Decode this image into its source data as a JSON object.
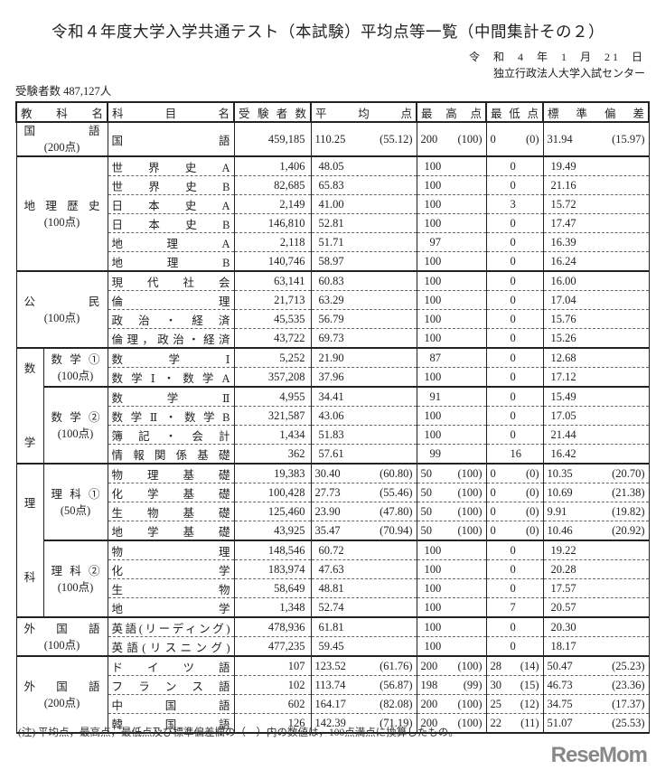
{
  "title": "令和４年度大学入学共通テスト（本試験）平均点等一覧（中間集計その２）",
  "date": "令 和 4 年 1 月 21 日",
  "organization": "独立行政法人大学入試センター",
  "total_examinees": "受験者数 487,127人",
  "headers": [
    "教　科　名",
    "科　　目　　名",
    "受 験 者 数",
    "平　均　点",
    "最 高 点",
    "最 低 点",
    "標 準 偏 差"
  ],
  "groups": [
    {
      "label": "国　　語",
      "points": "(200点)",
      "rows": [
        {
          "subject": "国　　　　　語",
          "examinees": "459,185",
          "avg": "110.25",
          "avg100": "(55.12)",
          "max": "200",
          "max100": "(100)",
          "min": "0",
          "min100": "(0)",
          "sd": "31.94",
          "sd100": "(15.97)"
        }
      ]
    },
    {
      "label": "地理歴史",
      "points": "(100点)",
      "rows": [
        {
          "subject": "世界史A",
          "examinees": "1,406",
          "avg": "48.05",
          "max": "100",
          "min": "0",
          "sd": "19.49"
        },
        {
          "subject": "世界史B",
          "examinees": "82,685",
          "avg": "65.83",
          "max": "100",
          "min": "0",
          "sd": "21.16"
        },
        {
          "subject": "日本史A",
          "examinees": "2,149",
          "avg": "41.00",
          "max": "100",
          "min": "3",
          "sd": "15.72"
        },
        {
          "subject": "日本史B",
          "examinees": "146,810",
          "avg": "52.81",
          "max": "100",
          "min": "0",
          "sd": "17.47"
        },
        {
          "subject": "地理A",
          "examinees": "2,118",
          "avg": "51.71",
          "max": "97",
          "min": "0",
          "sd": "16.39"
        },
        {
          "subject": "地理B",
          "examinees": "140,746",
          "avg": "58.97",
          "max": "100",
          "min": "0",
          "sd": "16.24"
        }
      ]
    },
    {
      "label": "公　　民",
      "points": "(100点)",
      "rows": [
        {
          "subject": "現代社会",
          "examinees": "63,141",
          "avg": "60.83",
          "max": "100",
          "min": "0",
          "sd": "16.00"
        },
        {
          "subject": "倫　　理",
          "examinees": "21,713",
          "avg": "63.29",
          "max": "100",
          "min": "0",
          "sd": "17.04"
        },
        {
          "subject": "政治・経済",
          "examinees": "45,535",
          "avg": "56.79",
          "max": "100",
          "min": "0",
          "sd": "15.76"
        },
        {
          "subject": "倫理，政治・経済",
          "examinees": "43,722",
          "avg": "69.73",
          "max": "100",
          "min": "0",
          "sd": "15.26"
        }
      ]
    },
    {
      "outer": [
        "数",
        "学"
      ],
      "subs": [
        {
          "label": "数学①",
          "points": "(100点)",
          "rows": [
            {
              "subject": "数　学　Ⅰ",
              "examinees": "5,252",
              "avg": "21.90",
              "max": "87",
              "min": "0",
              "sd": "12.68"
            },
            {
              "subject": "数学Ⅰ・数学A",
              "examinees": "357,208",
              "avg": "37.96",
              "max": "100",
              "min": "0",
              "sd": "17.12"
            }
          ]
        },
        {
          "label": "数学②",
          "points": "(100点)",
          "rows": [
            {
              "subject": "数　学　Ⅱ",
              "examinees": "4,955",
              "avg": "34.41",
              "max": "91",
              "min": "0",
              "sd": "15.49"
            },
            {
              "subject": "数学Ⅱ・数学B",
              "examinees": "321,587",
              "avg": "43.06",
              "max": "100",
              "min": "0",
              "sd": "17.05"
            },
            {
              "subject": "簿記・会計",
              "examinees": "1,434",
              "avg": "51.83",
              "max": "100",
              "min": "0",
              "sd": "21.44"
            },
            {
              "subject": "情報関係基礎",
              "examinees": "362",
              "avg": "57.61",
              "max": "99",
              "min": "16",
              "sd": "16.42"
            }
          ]
        }
      ]
    },
    {
      "outer": [
        "理",
        "科"
      ],
      "subs": [
        {
          "label": "理科①",
          "points": "(50点)",
          "rows": [
            {
              "subject": "物理基礎",
              "examinees": "19,383",
              "avg": "30.40",
              "avg100": "(60.80)",
              "max": "50",
              "max100": "(100)",
              "min": "0",
              "min100": "(0)",
              "sd": "10.35",
              "sd100": "(20.70)"
            },
            {
              "subject": "化学基礎",
              "examinees": "100,428",
              "avg": "27.73",
              "avg100": "(55.46)",
              "max": "50",
              "max100": "(100)",
              "min": "0",
              "min100": "(0)",
              "sd": "10.69",
              "sd100": "(21.38)"
            },
            {
              "subject": "生物基礎",
              "examinees": "125,460",
              "avg": "23.90",
              "avg100": "(47.80)",
              "max": "50",
              "max100": "(100)",
              "min": "0",
              "min100": "(0)",
              "sd": "9.91",
              "sd100": "(19.82)"
            },
            {
              "subject": "地学基礎",
              "examinees": "43,925",
              "avg": "35.47",
              "avg100": "(70.94)",
              "max": "50",
              "max100": "(100)",
              "min": "0",
              "min100": "(0)",
              "sd": "10.46",
              "sd100": "(20.92)"
            }
          ]
        },
        {
          "label": "理科②",
          "points": "(100点)",
          "rows": [
            {
              "subject": "物　　理",
              "examinees": "148,546",
              "avg": "60.72",
              "max": "100",
              "min": "0",
              "sd": "19.22"
            },
            {
              "subject": "化　　学",
              "examinees": "183,974",
              "avg": "47.63",
              "max": "100",
              "min": "0",
              "sd": "20.28"
            },
            {
              "subject": "生　　物",
              "examinees": "58,649",
              "avg": "48.81",
              "max": "100",
              "min": "0",
              "sd": "17.57"
            },
            {
              "subject": "地　　学",
              "examinees": "1,348",
              "avg": "52.74",
              "max": "100",
              "min": "7",
              "sd": "20.57"
            }
          ]
        }
      ]
    },
    {
      "label": "外国語",
      "points": "(100点)",
      "rows": [
        {
          "subject": "英語(リーディング)",
          "examinees": "478,936",
          "avg": "61.81",
          "max": "100",
          "min": "0",
          "sd": "20.30"
        },
        {
          "subject": "英語(リスニング)",
          "examinees": "477,235",
          "avg": "59.45",
          "max": "100",
          "min": "0",
          "sd": "18.17"
        }
      ]
    },
    {
      "label": "外国語",
      "points": "(200点)",
      "rows": [
        {
          "subject": "ドイツ語",
          "examinees": "107",
          "avg": "123.52",
          "avg100": "(61.76)",
          "max": "200",
          "max100": "(100)",
          "min": "28",
          "min100": "(14)",
          "sd": "50.47",
          "sd100": "(25.23)"
        },
        {
          "subject": "フランス語",
          "examinees": "102",
          "avg": "113.74",
          "avg100": "(56.87)",
          "max": "198",
          "max100": "(99)",
          "min": "30",
          "min100": "(15)",
          "sd": "46.73",
          "sd100": "(23.36)"
        },
        {
          "subject": "中　国　語",
          "examinees": "602",
          "avg": "164.17",
          "avg100": "(82.08)",
          "max": "200",
          "max100": "(100)",
          "min": "25",
          "min100": "(12)",
          "sd": "34.75",
          "sd100": "(17.37)"
        },
        {
          "subject": "韓　国　語",
          "examinees": "126",
          "avg": "142.39",
          "avg100": "(71.19)",
          "max": "200",
          "max100": "(100)",
          "min": "22",
          "min100": "(11)",
          "sd": "51.07",
          "sd100": "(25.53)"
        }
      ]
    }
  ],
  "note": "(注) 平均点，最高点，最低点及び標準偏差欄の（　）内の数値は，100点満点に換算したもの。",
  "logo_text": "ReseMom"
}
